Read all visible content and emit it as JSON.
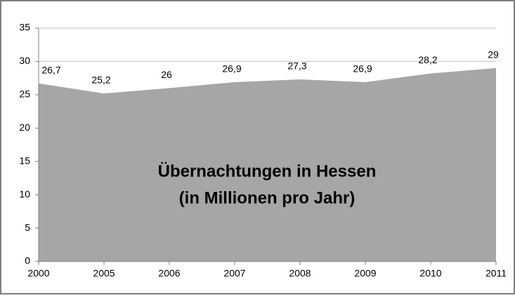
{
  "chart_data": {
    "type": "area",
    "title": "Übernachtungen in Hessen",
    "subtitle": "(in Millionen pro Jahr)",
    "categories": [
      "2000",
      "2005",
      "2006",
      "2007",
      "2008",
      "2009",
      "2010",
      "2011"
    ],
    "values": [
      26.7,
      25.2,
      26,
      26.9,
      27.3,
      26.9,
      28.2,
      29
    ],
    "value_labels": [
      "26,7",
      "25,2",
      "26",
      "26,9",
      "27,3",
      "26,9",
      "28,2",
      "29"
    ],
    "color": "#a6a6a6",
    "ylim": [
      0,
      35
    ],
    "yticks": [
      0,
      5,
      10,
      15,
      20,
      25,
      30,
      35
    ],
    "grid": true
  }
}
